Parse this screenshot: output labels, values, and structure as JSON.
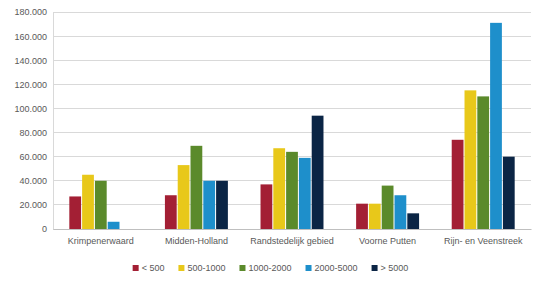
{
  "chart_data": {
    "type": "bar",
    "categories": [
      "Krimpenerwaard",
      "Midden-Holland",
      "Randstedelijk gebied",
      "Voorne Putten",
      "Rijn- en Veenstreek"
    ],
    "series": [
      {
        "name": "< 500",
        "color": "#a31f34",
        "values": [
          27000,
          28000,
          37000,
          21000,
          74000
        ]
      },
      {
        "name": "500-1000",
        "color": "#e8c81a",
        "values": [
          45000,
          53000,
          67000,
          21000,
          115000
        ]
      },
      {
        "name": "1000-2000",
        "color": "#5b8a2b",
        "values": [
          40000,
          69000,
          64000,
          36000,
          110000
        ]
      },
      {
        "name": "2000-5000",
        "color": "#1e8fcb",
        "values": [
          6000,
          40000,
          59000,
          28000,
          171000
        ]
      },
      {
        "name": "> 5000",
        "color": "#0b2545",
        "values": [
          0,
          40000,
          94000,
          13000,
          60000
        ]
      }
    ],
    "ylim": [
      0,
      180000
    ],
    "yticks": [
      0,
      {
        "value": 20000,
        "label": "20.000"
      },
      {
        "value": 40000,
        "label": "40.000"
      },
      {
        "value": 60000,
        "label": "60.000"
      },
      {
        "value": 80000,
        "label": "80.000"
      },
      {
        "value": 100000,
        "label": "100.000"
      },
      {
        "value": 120000,
        "label": "120.000"
      },
      {
        "value": 140000,
        "label": "140.000"
      },
      {
        "value": 160000,
        "label": "160.000"
      },
      {
        "value": 180000,
        "label": "180.000"
      }
    ],
    "grid": true,
    "legend": "bottom"
  }
}
